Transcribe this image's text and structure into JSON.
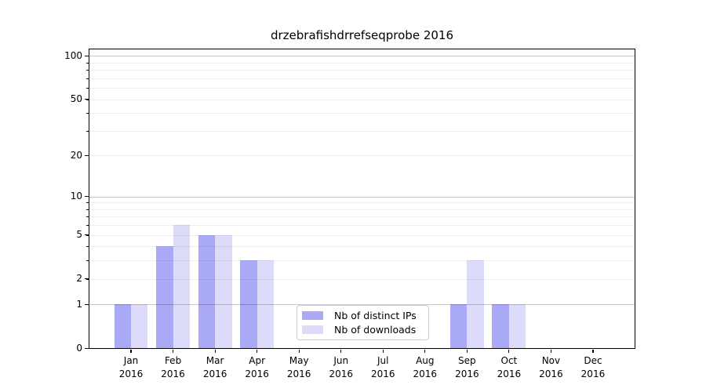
{
  "chart_data": {
    "type": "bar",
    "title": "drzebrafishdrrefseqprobe 2016",
    "year": "2016",
    "categories": [
      "Jan",
      "Feb",
      "Mar",
      "Apr",
      "May",
      "Jun",
      "Jul",
      "Aug",
      "Sep",
      "Oct",
      "Nov",
      "Dec"
    ],
    "series": [
      {
        "name": "Nb of distinct IPs",
        "color": "#a9a9f5",
        "values": [
          1,
          4,
          5,
          3,
          0,
          0,
          0,
          0,
          1,
          1,
          0,
          0
        ]
      },
      {
        "name": "Nb of downloads",
        "color": "#dcdcfa",
        "values": [
          1,
          6,
          5,
          3,
          0,
          0,
          0,
          0,
          3,
          1,
          0,
          0
        ]
      }
    ],
    "yscale": "log1p",
    "ylim": [
      0,
      111
    ],
    "y_ticks": [
      0,
      1,
      2,
      5,
      10,
      20,
      50,
      100
    ],
    "y_minor_ticks": [
      2,
      3,
      4,
      5,
      6,
      7,
      8,
      9,
      20,
      30,
      40,
      50,
      60,
      70,
      80,
      90
    ],
    "grid": {
      "major_lines": [
        1,
        10,
        100
      ],
      "major_color": "rgba(0,0,0,0.22)",
      "minor_color": "rgba(0,0,0,0.07)",
      "on": true,
      "orientation": "horizontal"
    },
    "legend_position": "lower center-left inside plot",
    "axes": {
      "spine_color": "#000000",
      "tick_color": "#000000",
      "text_color": "#000000"
    }
  }
}
